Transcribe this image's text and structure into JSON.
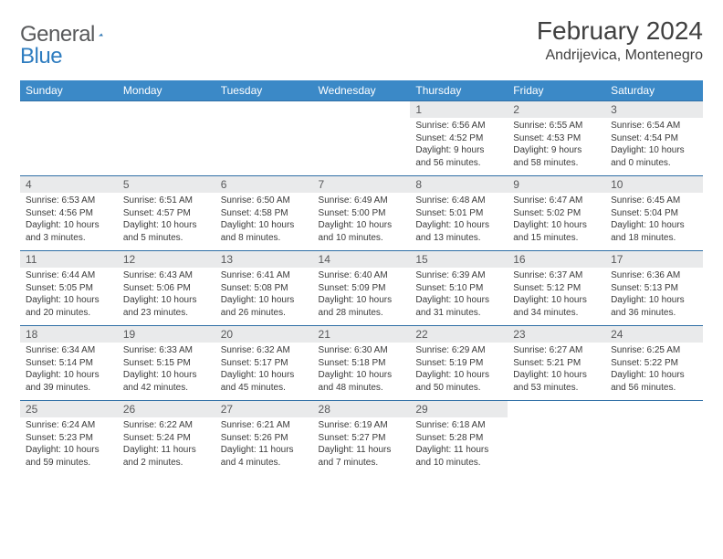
{
  "logo": {
    "word1": "General",
    "word2": "Blue"
  },
  "title": "February 2024",
  "location": "Andrijevica, Montenegro",
  "colors": {
    "header_bg": "#3b89c7",
    "header_text": "#ffffff",
    "daynum_bg": "#e9eaeb",
    "border": "#2f6fa6",
    "logo_gray": "#58595b",
    "logo_blue": "#2f7dc0"
  },
  "columns": [
    "Sunday",
    "Monday",
    "Tuesday",
    "Wednesday",
    "Thursday",
    "Friday",
    "Saturday"
  ],
  "weeks": [
    [
      null,
      null,
      null,
      null,
      {
        "n": "1",
        "sr": "Sunrise: 6:56 AM",
        "ss": "Sunset: 4:52 PM",
        "dl1": "Daylight: 9 hours",
        "dl2": "and 56 minutes."
      },
      {
        "n": "2",
        "sr": "Sunrise: 6:55 AM",
        "ss": "Sunset: 4:53 PM",
        "dl1": "Daylight: 9 hours",
        "dl2": "and 58 minutes."
      },
      {
        "n": "3",
        "sr": "Sunrise: 6:54 AM",
        "ss": "Sunset: 4:54 PM",
        "dl1": "Daylight: 10 hours",
        "dl2": "and 0 minutes."
      }
    ],
    [
      {
        "n": "4",
        "sr": "Sunrise: 6:53 AM",
        "ss": "Sunset: 4:56 PM",
        "dl1": "Daylight: 10 hours",
        "dl2": "and 3 minutes."
      },
      {
        "n": "5",
        "sr": "Sunrise: 6:51 AM",
        "ss": "Sunset: 4:57 PM",
        "dl1": "Daylight: 10 hours",
        "dl2": "and 5 minutes."
      },
      {
        "n": "6",
        "sr": "Sunrise: 6:50 AM",
        "ss": "Sunset: 4:58 PM",
        "dl1": "Daylight: 10 hours",
        "dl2": "and 8 minutes."
      },
      {
        "n": "7",
        "sr": "Sunrise: 6:49 AM",
        "ss": "Sunset: 5:00 PM",
        "dl1": "Daylight: 10 hours",
        "dl2": "and 10 minutes."
      },
      {
        "n": "8",
        "sr": "Sunrise: 6:48 AM",
        "ss": "Sunset: 5:01 PM",
        "dl1": "Daylight: 10 hours",
        "dl2": "and 13 minutes."
      },
      {
        "n": "9",
        "sr": "Sunrise: 6:47 AM",
        "ss": "Sunset: 5:02 PM",
        "dl1": "Daylight: 10 hours",
        "dl2": "and 15 minutes."
      },
      {
        "n": "10",
        "sr": "Sunrise: 6:45 AM",
        "ss": "Sunset: 5:04 PM",
        "dl1": "Daylight: 10 hours",
        "dl2": "and 18 minutes."
      }
    ],
    [
      {
        "n": "11",
        "sr": "Sunrise: 6:44 AM",
        "ss": "Sunset: 5:05 PM",
        "dl1": "Daylight: 10 hours",
        "dl2": "and 20 minutes."
      },
      {
        "n": "12",
        "sr": "Sunrise: 6:43 AM",
        "ss": "Sunset: 5:06 PM",
        "dl1": "Daylight: 10 hours",
        "dl2": "and 23 minutes."
      },
      {
        "n": "13",
        "sr": "Sunrise: 6:41 AM",
        "ss": "Sunset: 5:08 PM",
        "dl1": "Daylight: 10 hours",
        "dl2": "and 26 minutes."
      },
      {
        "n": "14",
        "sr": "Sunrise: 6:40 AM",
        "ss": "Sunset: 5:09 PM",
        "dl1": "Daylight: 10 hours",
        "dl2": "and 28 minutes."
      },
      {
        "n": "15",
        "sr": "Sunrise: 6:39 AM",
        "ss": "Sunset: 5:10 PM",
        "dl1": "Daylight: 10 hours",
        "dl2": "and 31 minutes."
      },
      {
        "n": "16",
        "sr": "Sunrise: 6:37 AM",
        "ss": "Sunset: 5:12 PM",
        "dl1": "Daylight: 10 hours",
        "dl2": "and 34 minutes."
      },
      {
        "n": "17",
        "sr": "Sunrise: 6:36 AM",
        "ss": "Sunset: 5:13 PM",
        "dl1": "Daylight: 10 hours",
        "dl2": "and 36 minutes."
      }
    ],
    [
      {
        "n": "18",
        "sr": "Sunrise: 6:34 AM",
        "ss": "Sunset: 5:14 PM",
        "dl1": "Daylight: 10 hours",
        "dl2": "and 39 minutes."
      },
      {
        "n": "19",
        "sr": "Sunrise: 6:33 AM",
        "ss": "Sunset: 5:15 PM",
        "dl1": "Daylight: 10 hours",
        "dl2": "and 42 minutes."
      },
      {
        "n": "20",
        "sr": "Sunrise: 6:32 AM",
        "ss": "Sunset: 5:17 PM",
        "dl1": "Daylight: 10 hours",
        "dl2": "and 45 minutes."
      },
      {
        "n": "21",
        "sr": "Sunrise: 6:30 AM",
        "ss": "Sunset: 5:18 PM",
        "dl1": "Daylight: 10 hours",
        "dl2": "and 48 minutes."
      },
      {
        "n": "22",
        "sr": "Sunrise: 6:29 AM",
        "ss": "Sunset: 5:19 PM",
        "dl1": "Daylight: 10 hours",
        "dl2": "and 50 minutes."
      },
      {
        "n": "23",
        "sr": "Sunrise: 6:27 AM",
        "ss": "Sunset: 5:21 PM",
        "dl1": "Daylight: 10 hours",
        "dl2": "and 53 minutes."
      },
      {
        "n": "24",
        "sr": "Sunrise: 6:25 AM",
        "ss": "Sunset: 5:22 PM",
        "dl1": "Daylight: 10 hours",
        "dl2": "and 56 minutes."
      }
    ],
    [
      {
        "n": "25",
        "sr": "Sunrise: 6:24 AM",
        "ss": "Sunset: 5:23 PM",
        "dl1": "Daylight: 10 hours",
        "dl2": "and 59 minutes."
      },
      {
        "n": "26",
        "sr": "Sunrise: 6:22 AM",
        "ss": "Sunset: 5:24 PM",
        "dl1": "Daylight: 11 hours",
        "dl2": "and 2 minutes."
      },
      {
        "n": "27",
        "sr": "Sunrise: 6:21 AM",
        "ss": "Sunset: 5:26 PM",
        "dl1": "Daylight: 11 hours",
        "dl2": "and 4 minutes."
      },
      {
        "n": "28",
        "sr": "Sunrise: 6:19 AM",
        "ss": "Sunset: 5:27 PM",
        "dl1": "Daylight: 11 hours",
        "dl2": "and 7 minutes."
      },
      {
        "n": "29",
        "sr": "Sunrise: 6:18 AM",
        "ss": "Sunset: 5:28 PM",
        "dl1": "Daylight: 11 hours",
        "dl2": "and 10 minutes."
      },
      null,
      null
    ]
  ]
}
